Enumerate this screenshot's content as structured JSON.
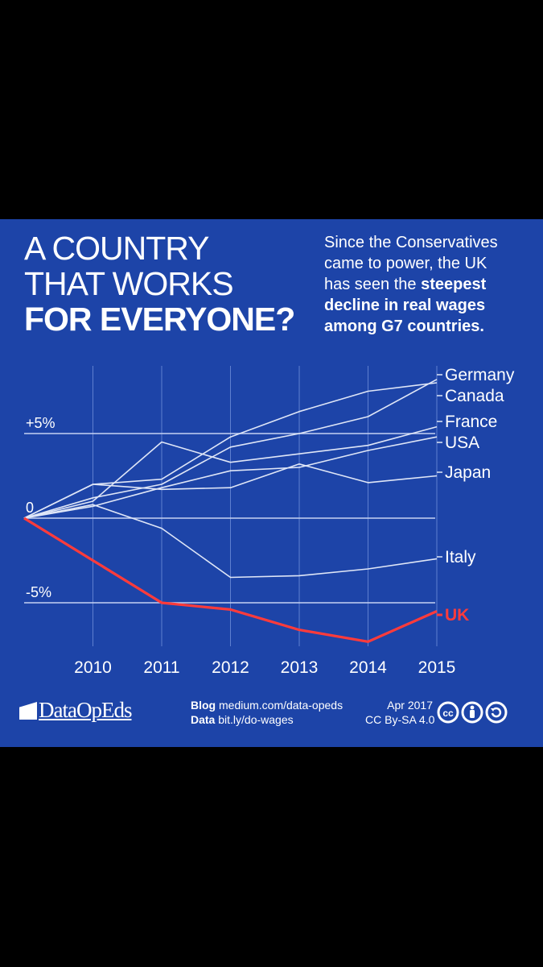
{
  "headline": {
    "line1": "A COUNTRY",
    "line2": "THAT WORKS",
    "line3": "FOR EVERYONE?"
  },
  "subhead": {
    "line1": "Since the Conservatives",
    "line2": "came to power, the UK",
    "line3_prefix": "has seen the ",
    "line3_bold": "steepest",
    "line4": "decline in real wages",
    "line5": "among G7 countries."
  },
  "footer": {
    "logo_text": "DataOpEds",
    "blog_label": "Blog",
    "blog_url": "medium.com/data-opeds",
    "data_label": "Data",
    "data_url": "bit.ly/do-wages",
    "date": "Apr 2017",
    "license": "CC By-SA 4.0"
  },
  "colors": {
    "background": "#1d44a8",
    "lines": "#dfe6f7",
    "highlight": "#ff3b3b",
    "text": "#ffffff"
  },
  "chart_data": {
    "type": "line",
    "x": [
      2009,
      2010,
      2011,
      2012,
      2013,
      2014,
      2015
    ],
    "xticks": [
      "2010",
      "2011",
      "2012",
      "2013",
      "2014",
      "2015"
    ],
    "yticks": [
      {
        "value": 5,
        "label": "+5%"
      },
      {
        "value": 0,
        "label": "0"
      },
      {
        "value": -5,
        "label": "-5%"
      }
    ],
    "ylim": [
      -8,
      9
    ],
    "grid": true,
    "highlight_series": "UK",
    "series": [
      {
        "name": "Germany",
        "values": [
          0,
          2.0,
          2.3,
          4.8,
          6.3,
          7.5,
          8.0
        ]
      },
      {
        "name": "Canada",
        "values": [
          0,
          1.2,
          2.0,
          4.2,
          5.0,
          6.0,
          8.2
        ]
      },
      {
        "name": "France",
        "values": [
          0,
          1.0,
          4.5,
          3.3,
          3.8,
          4.3,
          5.4
        ]
      },
      {
        "name": "USA",
        "values": [
          0,
          0.7,
          1.8,
          2.8,
          3.0,
          4.0,
          4.8
        ]
      },
      {
        "name": "Japan",
        "values": [
          0,
          2.0,
          1.7,
          1.8,
          3.2,
          2.1,
          2.5
        ]
      },
      {
        "name": "Italy",
        "values": [
          0,
          0.8,
          -0.6,
          -3.5,
          -3.4,
          -3.0,
          -2.4
        ]
      },
      {
        "name": "UK",
        "values": [
          0,
          -2.5,
          -5.0,
          -5.4,
          -6.6,
          -7.3,
          -5.5
        ]
      }
    ]
  }
}
